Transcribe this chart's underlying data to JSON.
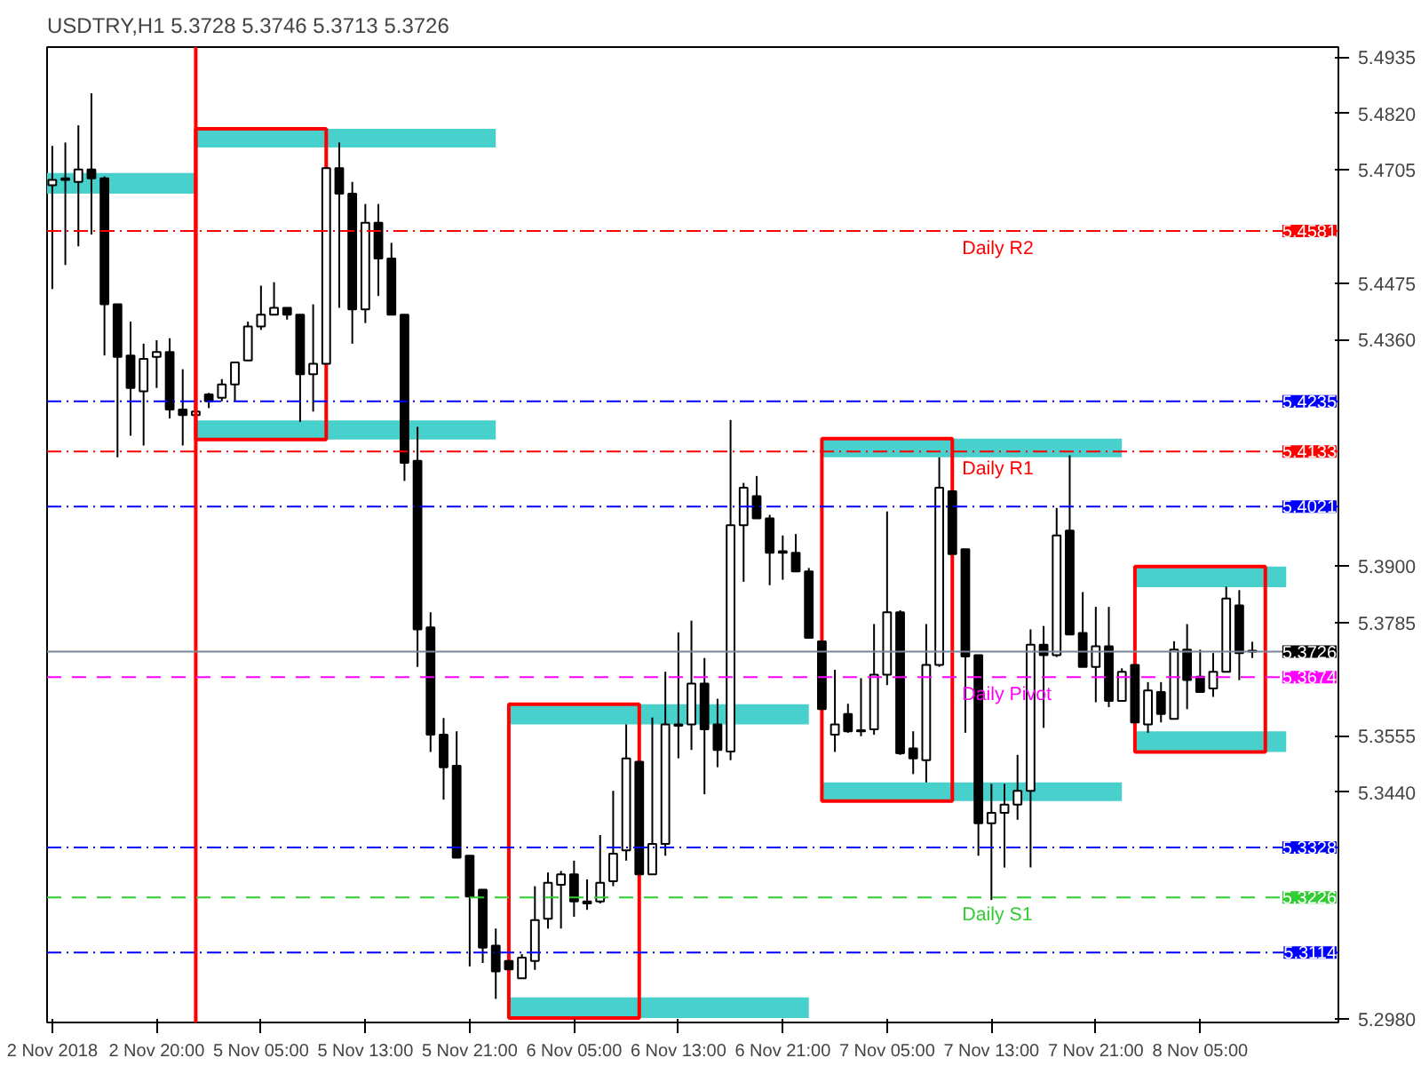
{
  "chart_data": {
    "type": "candlestick",
    "title": "USDTRY,H1 5.3728 5.3746 5.3713 5.3726",
    "categories": [
      "2 Nov 2018",
      null,
      null,
      null,
      null,
      null,
      null,
      null,
      "2 Nov 20:00",
      null,
      null,
      null,
      null,
      null,
      null,
      null,
      "5 Nov 05:00",
      null,
      null,
      null,
      null,
      null,
      null,
      null,
      "5 Nov 13:00",
      null,
      null,
      null,
      null,
      null,
      null,
      null,
      "5 Nov 21:00",
      null,
      null,
      null,
      null,
      null,
      null,
      null,
      "6 Nov 05:00",
      null,
      null,
      null,
      null,
      null,
      null,
      null,
      "6 Nov 13:00",
      null,
      null,
      null,
      null,
      null,
      null,
      null,
      "6 Nov 21:00",
      null,
      null,
      null,
      null,
      null,
      null,
      null,
      "7 Nov 05:00",
      null,
      null,
      null,
      null,
      null,
      null,
      null,
      "7 Nov 13:00",
      null,
      null,
      null,
      null,
      null,
      null,
      null,
      "7 Nov 21:00",
      null,
      null,
      null,
      null,
      null,
      null,
      null,
      "8 Nov 05:00",
      null,
      null,
      null,
      null
    ],
    "ohlc": [
      [
        5.4674,
        5.4754,
        5.4463,
        5.4685
      ],
      [
        5.4688,
        5.4761,
        5.4512,
        5.4685
      ],
      [
        5.4681,
        5.4796,
        5.455,
        5.4706
      ],
      [
        5.4706,
        5.4861,
        5.4574,
        5.4688
      ],
      [
        5.4688,
        5.4692,
        5.4328,
        5.4432
      ],
      [
        5.4432,
        5.4432,
        5.4121,
        5.4325
      ],
      [
        5.4328,
        5.4397,
        5.4165,
        5.4262
      ],
      [
        5.4255,
        5.4352,
        5.4145,
        5.4321
      ],
      [
        5.4325,
        5.4359,
        5.4262,
        5.4335
      ],
      [
        5.4335,
        5.4363,
        5.42,
        5.4218
      ],
      [
        5.4218,
        5.43,
        5.4145,
        5.4207
      ],
      [
        5.4207,
        5.4218,
        5.4207,
        5.4214
      ],
      [
        5.4249,
        5.4252,
        5.4221,
        5.4235
      ],
      [
        5.4242,
        5.428,
        5.4235,
        5.4269
      ],
      [
        5.4269,
        5.4314,
        5.4235,
        5.4314
      ],
      [
        5.4318,
        5.4397,
        5.4318,
        5.4387
      ],
      [
        5.4387,
        5.447,
        5.438,
        5.4411
      ],
      [
        5.4411,
        5.4477,
        5.4411,
        5.4425
      ],
      [
        5.4425,
        5.4425,
        5.4401,
        5.4411
      ],
      [
        5.4411,
        5.4411,
        5.4193,
        5.429
      ],
      [
        5.429,
        5.4432,
        5.4214,
        5.4311
      ],
      [
        5.4311,
        5.4709,
        5.4311,
        5.4709
      ],
      [
        5.4709,
        5.4761,
        5.4425,
        5.4657
      ],
      [
        5.4657,
        5.4681,
        5.4352,
        5.4422
      ],
      [
        5.4422,
        5.4636,
        5.4394,
        5.4598
      ],
      [
        5.4598,
        5.4636,
        5.4449,
        5.4525
      ],
      [
        5.4525,
        5.4557,
        5.4411,
        5.4411
      ],
      [
        5.4411,
        5.4411,
        5.4073,
        5.411
      ],
      [
        5.4114,
        5.4183,
        5.3695,
        5.3771
      ],
      [
        5.3775,
        5.3806,
        5.3522,
        5.3557
      ],
      [
        5.3557,
        5.3591,
        5.3425,
        5.3491
      ],
      [
        5.3494,
        5.3564,
        5.3307,
        5.3307
      ],
      [
        5.3311,
        5.3311,
        5.3086,
        5.3228
      ],
      [
        5.3242,
        5.3242,
        5.3093,
        5.3124
      ],
      [
        5.3128,
        5.3163,
        5.302,
        5.3076
      ],
      [
        5.3097,
        5.3097,
        5.308,
        5.308
      ],
      [
        5.3062,
        5.3111,
        5.3062,
        5.3104
      ],
      [
        5.3097,
        5.3249,
        5.3079,
        5.318
      ],
      [
        5.3183,
        5.3277,
        5.3163,
        5.3256
      ],
      [
        5.3252,
        5.328,
        5.3163,
        5.3273
      ],
      [
        5.3273,
        5.3301,
        5.3187,
        5.3218
      ],
      [
        5.3218,
        5.3263,
        5.3201,
        5.3214
      ],
      [
        5.3218,
        5.3353,
        5.3214,
        5.3256
      ],
      [
        5.3259,
        5.3443,
        5.3249,
        5.3315
      ],
      [
        5.3322,
        5.3578,
        5.3301,
        5.3509
      ],
      [
        5.3502,
        5.3502,
        5.3273,
        5.3273
      ],
      [
        5.3273,
        5.3592,
        5.3273,
        5.3335
      ],
      [
        5.3335,
        5.3685,
        5.3311,
        5.3578
      ],
      [
        5.3578,
        5.3765,
        5.3509,
        5.3575
      ],
      [
        5.3578,
        5.3789,
        5.3526,
        5.3661
      ],
      [
        5.3661,
        5.3713,
        5.3436,
        5.3568
      ],
      [
        5.3578,
        5.363,
        5.3491,
        5.3526
      ],
      [
        5.3523,
        5.4197,
        5.3505,
        5.3983
      ],
      [
        5.3983,
        5.4069,
        5.3868,
        5.4059
      ],
      [
        5.4042,
        5.4083,
        5.3997,
        5.3997
      ],
      [
        5.3997,
        5.4004,
        5.3861,
        5.3927
      ],
      [
        5.393,
        5.3962,
        5.3872,
        5.3927
      ],
      [
        5.3927,
        5.3965,
        5.3889,
        5.3889
      ],
      [
        5.3889,
        5.3896,
        5.3754,
        5.3754
      ],
      [
        5.3747,
        5.3747,
        5.3609,
        5.3609
      ],
      [
        5.3557,
        5.3689,
        5.3522,
        5.3578
      ],
      [
        5.3599,
        5.362,
        5.3561,
        5.3564
      ],
      [
        5.3566,
        5.3672,
        5.3554,
        5.3564
      ],
      [
        5.3568,
        5.3782,
        5.3557,
        5.3679
      ],
      [
        5.3679,
        5.4011,
        5.3658,
        5.3806
      ],
      [
        5.3806,
        5.381,
        5.3516,
        5.3519
      ],
      [
        5.3529,
        5.3564,
        5.3477,
        5.3509
      ],
      [
        5.3505,
        5.3782,
        5.346,
        5.3699
      ],
      [
        5.3699,
        5.4121,
        5.3695,
        5.4059
      ],
      [
        5.4052,
        5.4052,
        5.3924,
        5.3924
      ],
      [
        5.3934,
        5.3934,
        5.3561,
        5.3716
      ],
      [
        5.3719,
        5.3719,
        5.3311,
        5.3377
      ],
      [
        5.3377,
        5.3457,
        5.3221,
        5.3398
      ],
      [
        5.3398,
        5.3457,
        5.3287,
        5.3415
      ],
      [
        5.3415,
        5.3516,
        5.3384,
        5.3443
      ],
      [
        5.3443,
        5.3771,
        5.3287,
        5.374
      ],
      [
        5.374,
        5.3778,
        5.3571,
        5.3719
      ],
      [
        5.3719,
        5.4018,
        5.3715,
        5.3962
      ],
      [
        5.3972,
        5.4125,
        5.3761,
        5.3761
      ],
      [
        5.3764,
        5.3847,
        5.3695,
        5.3695
      ],
      [
        5.3695,
        5.3817,
        5.3623,
        5.3737
      ],
      [
        5.3737,
        5.3817,
        5.3613,
        5.3626
      ],
      [
        5.3626,
        5.3692,
        5.3626,
        5.3685
      ],
      [
        5.3699,
        5.3699,
        5.3582,
        5.3582
      ],
      [
        5.3578,
        5.3664,
        5.3561,
        5.3647
      ],
      [
        5.3644,
        5.3664,
        5.3582,
        5.3599
      ],
      [
        5.3589,
        5.3747,
        5.3589,
        5.373
      ],
      [
        5.373,
        5.3782,
        5.3609,
        5.3668
      ],
      [
        5.3675,
        5.373,
        5.3644,
        5.3644
      ],
      [
        5.3651,
        5.3723,
        5.3634,
        5.3685
      ],
      [
        5.3685,
        5.3858,
        5.3685,
        5.3834
      ],
      [
        5.382,
        5.3851,
        5.3668,
        5.3723
      ],
      [
        5.3728,
        5.3746,
        5.3713,
        5.3726
      ]
    ],
    "ylim": [
      5.2972,
      5.4955
    ],
    "yticks": [
      {
        "value": 5.4935,
        "label": "5.4935"
      },
      {
        "value": 5.482,
        "label": "5.4820"
      },
      {
        "value": 5.4705,
        "label": "5.4705"
      },
      {
        "value": 5.4475,
        "label": "5.4475"
      },
      {
        "value": 5.436,
        "label": "5.4360"
      },
      {
        "value": 5.39,
        "label": "5.3900"
      },
      {
        "value": 5.3785,
        "label": "5.3785"
      },
      {
        "value": 5.3555,
        "label": "5.3555"
      },
      {
        "value": 5.344,
        "label": "5.3440"
      },
      {
        "value": 5.298,
        "label": "5.2980"
      }
    ],
    "grid": false,
    "annotations": [
      {
        "text": "5.4581",
        "y": 5.4581
      },
      {
        "text": "5.4235",
        "y": 5.4235
      },
      {
        "text": "5.4133",
        "y": 5.4133
      },
      {
        "text": "5.4021",
        "y": 5.4021
      },
      {
        "text": "5.3726",
        "y": 5.3726
      },
      {
        "text": "5.3674",
        "y": 5.3674
      },
      {
        "text": "5.3328",
        "y": 5.3328
      },
      {
        "text": "5.3226",
        "y": 5.3226
      },
      {
        "text": "5.3114",
        "y": 5.3114
      }
    ],
    "bands": [
      {
        "axis": "y",
        "from": 5.4657,
        "to": 5.4699,
        "color": "#48d1cc"
      },
      {
        "axis": "y",
        "from": 5.4751,
        "to": 5.4789,
        "color": "#48d1cc"
      },
      {
        "axis": "y",
        "from": 5.4157,
        "to": 5.4196,
        "color": "#48d1cc"
      },
      {
        "axis": "y",
        "from": 5.3578,
        "to": 5.3619,
        "color": "#48d1cc"
      },
      {
        "axis": "y",
        "from": 5.2981,
        "to": 5.3023,
        "color": "#48d1cc"
      },
      {
        "axis": "y",
        "from": 5.4121,
        "to": 5.4159,
        "color": "#48d1cc"
      },
      {
        "axis": "y",
        "from": 5.3422,
        "to": 5.346,
        "color": "#48d1cc"
      },
      {
        "axis": "y",
        "from": 5.3857,
        "to": 5.3899,
        "color": "#48d1cc"
      },
      {
        "axis": "y",
        "from": 5.3522,
        "to": 5.3564,
        "color": "#48d1cc"
      }
    ],
    "ref_lines": [
      {
        "axis": "y",
        "value": 5.4581,
        "label": "Daily R2",
        "color": "#ff0000",
        "line_style": "dashdot"
      },
      {
        "axis": "y",
        "value": 5.4235,
        "color": "#0000ff",
        "line_style": "dashdot"
      },
      {
        "axis": "y",
        "value": 5.4133,
        "label": "Daily R1",
        "color": "#ff0000",
        "line_style": "dashdot"
      },
      {
        "axis": "y",
        "value": 5.4021,
        "color": "#0000ff",
        "line_style": "dashdot"
      },
      {
        "axis": "y",
        "value": 5.3726,
        "color": "#778899",
        "line_style": "solid"
      },
      {
        "axis": "y",
        "value": 5.3674,
        "label": "Daily Pivot",
        "color": "#ff00ff",
        "line_style": "dashed"
      },
      {
        "axis": "y",
        "value": 5.3328,
        "color": "#0000ff",
        "line_style": "dashdot"
      },
      {
        "axis": "y",
        "value": 5.3226,
        "label": "Daily S1",
        "color": "#32cd32",
        "line_style": "dashed"
      },
      {
        "axis": "y",
        "value": 5.3114,
        "color": "#0000ff",
        "line_style": "dashdot"
      }
    ]
  }
}
